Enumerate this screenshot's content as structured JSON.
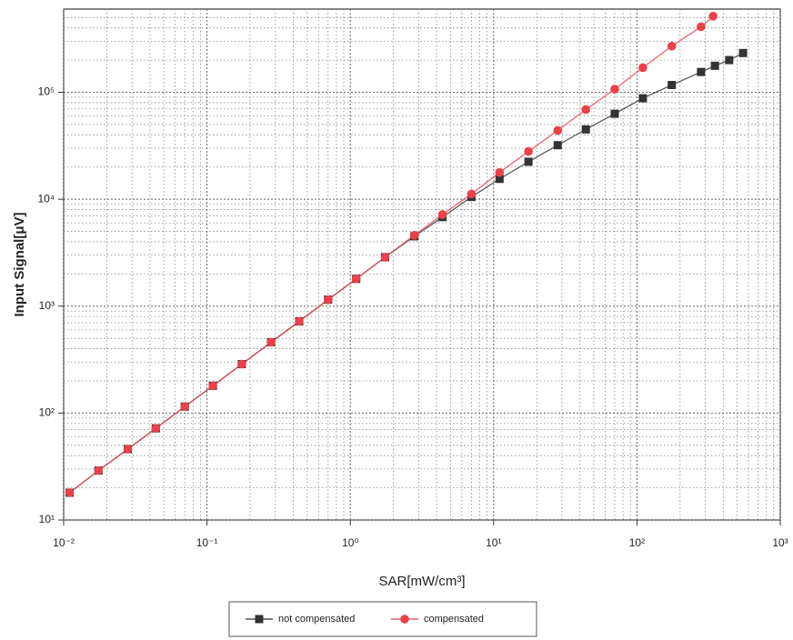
{
  "chart_data": {
    "type": "line",
    "xlabel": "SAR[mW/cm³]",
    "ylabel": "Input Signal[μV]",
    "xscale": "log",
    "yscale": "log",
    "grid": true,
    "legend": "bottom",
    "xlim": [
      0.01,
      1000
    ],
    "xticks": [
      {
        "value": 0.01,
        "label": "10⁻²"
      },
      {
        "value": 0.1,
        "label": "10⁻¹"
      },
      {
        "value": 1,
        "label": "10⁰"
      },
      {
        "value": 10,
        "label": "10¹"
      },
      {
        "value": 100,
        "label": "10²"
      },
      {
        "value": 1000,
        "label": "10³"
      }
    ],
    "ylim": [
      10,
      600000
    ],
    "yticks": [
      {
        "value": 10,
        "label": "10¹"
      },
      {
        "value": 100,
        "label": "10²"
      },
      {
        "value": 1000,
        "label": "10³"
      },
      {
        "value": 10000,
        "label": "10⁴"
      },
      {
        "value": 100000,
        "label": "10⁵"
      }
    ],
    "series": [
      {
        "name": "not compensated",
        "color": "#333333",
        "marker": "square",
        "x": [
          0.011,
          0.0175,
          0.028,
          0.044,
          0.07,
          0.11,
          0.175,
          0.28,
          0.44,
          0.7,
          1.1,
          1.75,
          2.8,
          4.4,
          7,
          11,
          17.5,
          28,
          44,
          70,
          110,
          175,
          280,
          350,
          440,
          550
        ],
        "values": [
          18,
          29,
          46,
          72,
          115,
          180,
          287,
          460,
          720,
          1150,
          1800,
          2870,
          4500,
          6800,
          10500,
          15500,
          22400,
          32000,
          45000,
          63000,
          88000,
          117000,
          155000,
          177000,
          200000,
          233000
        ]
      },
      {
        "name": "compensated",
        "color": "#e8424a",
        "marker": "circle",
        "x": [
          0.011,
          0.0175,
          0.028,
          0.044,
          0.07,
          0.11,
          0.175,
          0.28,
          0.44,
          0.7,
          1.1,
          1.75,
          2.8,
          4.4,
          7,
          11,
          17.5,
          28,
          44,
          70,
          110,
          175,
          280,
          340
        ],
        "values": [
          18,
          29,
          46,
          72,
          115,
          180,
          287,
          460,
          720,
          1150,
          1800,
          2870,
          4600,
          7200,
          11200,
          17800,
          28000,
          44000,
          69000,
          107000,
          170000,
          270000,
          410000,
          515000
        ]
      }
    ]
  }
}
